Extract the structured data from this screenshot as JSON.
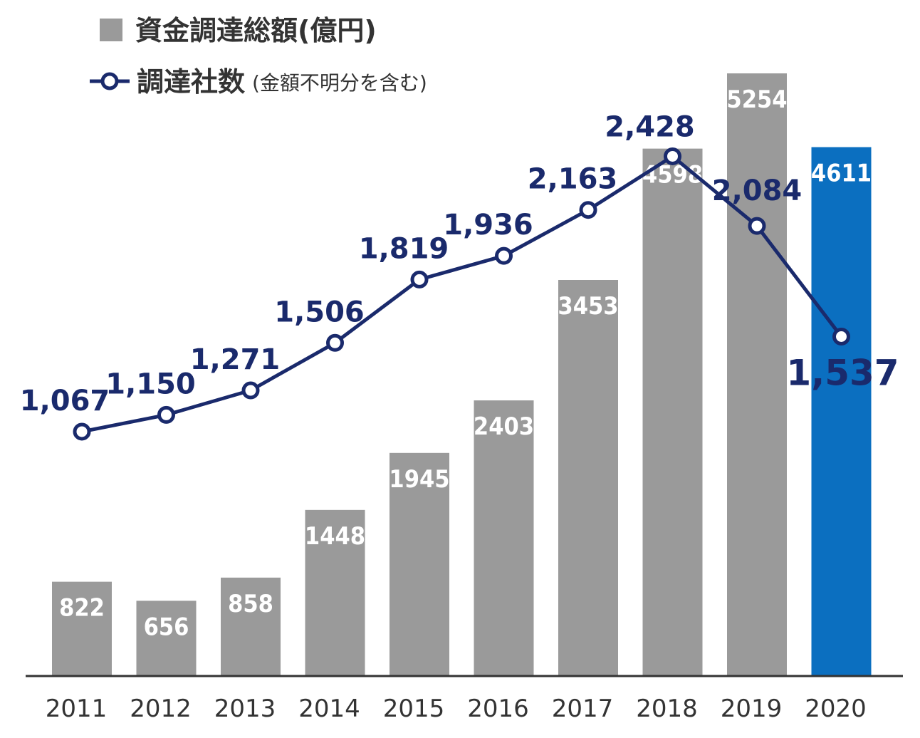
{
  "legend": {
    "bars_label": "資金調達総額(億円)",
    "line_label": "調達社数",
    "line_label_note": "(金額不明分を含む)"
  },
  "colors": {
    "bar": "#9a9a9a",
    "bar_highlight": "#0b6fc0",
    "line": "#1a2a6c"
  },
  "chart_data": {
    "type": "bar",
    "categories": [
      "2011",
      "2012",
      "2013",
      "2014",
      "2015",
      "2016",
      "2017",
      "2018",
      "2019",
      "2020"
    ],
    "series": [
      {
        "name": "資金調達総額(億円)",
        "type": "bar",
        "values": [
          822,
          656,
          858,
          1448,
          1945,
          2403,
          3453,
          4598,
          5254,
          4611
        ],
        "labels": [
          "822",
          "656",
          "858",
          "1448",
          "1945",
          "2403",
          "3453",
          "4598",
          "5254",
          "4611"
        ],
        "highlight_index": 9
      },
      {
        "name": "調達社数(金額不明分を含む)",
        "type": "line",
        "values": [
          1067,
          1150,
          1271,
          1506,
          1819,
          1936,
          2163,
          2428,
          2084,
          1537
        ],
        "labels": [
          "1,067",
          "1,150",
          "1,271",
          "1,506",
          "1,819",
          "1,936",
          "2,163",
          "2,428",
          "2,084",
          "1,537"
        ]
      }
    ],
    "title": "",
    "xlabel": "",
    "ylabel": ""
  }
}
